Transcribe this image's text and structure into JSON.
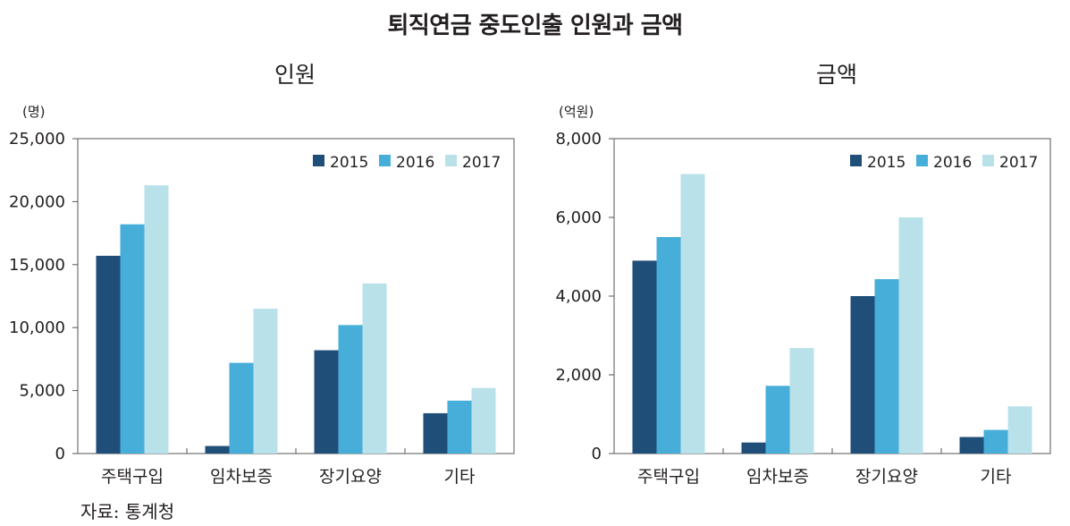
{
  "title": "퇴직연금 중도인출 인원과 금액",
  "source": "자료: 통계청",
  "colors": {
    "2015": "#1f4e79",
    "2016": "#46aed8",
    "2017": "#b9e1ea",
    "axis": "#555555"
  },
  "chart_data": [
    {
      "type": "bar",
      "title": "인원",
      "unit": "(명)",
      "categories": [
        "주택구입",
        "임차보증",
        "장기요양",
        "기타"
      ],
      "ylim": [
        0,
        25000
      ],
      "yticks": [
        0,
        5000,
        10000,
        15000,
        20000,
        25000
      ],
      "ytick_labels": [
        "0",
        "5,000",
        "10,000",
        "15,000",
        "20,000",
        "25,000"
      ],
      "legend_position": "top-right",
      "grid": false,
      "series": [
        {
          "name": "2015",
          "values": [
            15700,
            600,
            8200,
            3200
          ]
        },
        {
          "name": "2016",
          "values": [
            18200,
            7200,
            10200,
            4200
          ]
        },
        {
          "name": "2017",
          "values": [
            21300,
            11500,
            13500,
            5200
          ]
        }
      ]
    },
    {
      "type": "bar",
      "title": "금액",
      "unit": "(억원)",
      "categories": [
        "주택구입",
        "임차보증",
        "장기요양",
        "기타"
      ],
      "ylim": [
        0,
        8000
      ],
      "yticks": [
        0,
        2000,
        4000,
        6000,
        8000
      ],
      "ytick_labels": [
        "0",
        "2,000",
        "4,000",
        "6,000",
        "8,000"
      ],
      "legend_position": "top-right",
      "grid": false,
      "series": [
        {
          "name": "2015",
          "values": [
            4900,
            280,
            4000,
            420
          ]
        },
        {
          "name": "2016",
          "values": [
            5500,
            1720,
            4430,
            600
          ]
        },
        {
          "name": "2017",
          "values": [
            7100,
            2680,
            6000,
            1200
          ]
        }
      ]
    }
  ]
}
